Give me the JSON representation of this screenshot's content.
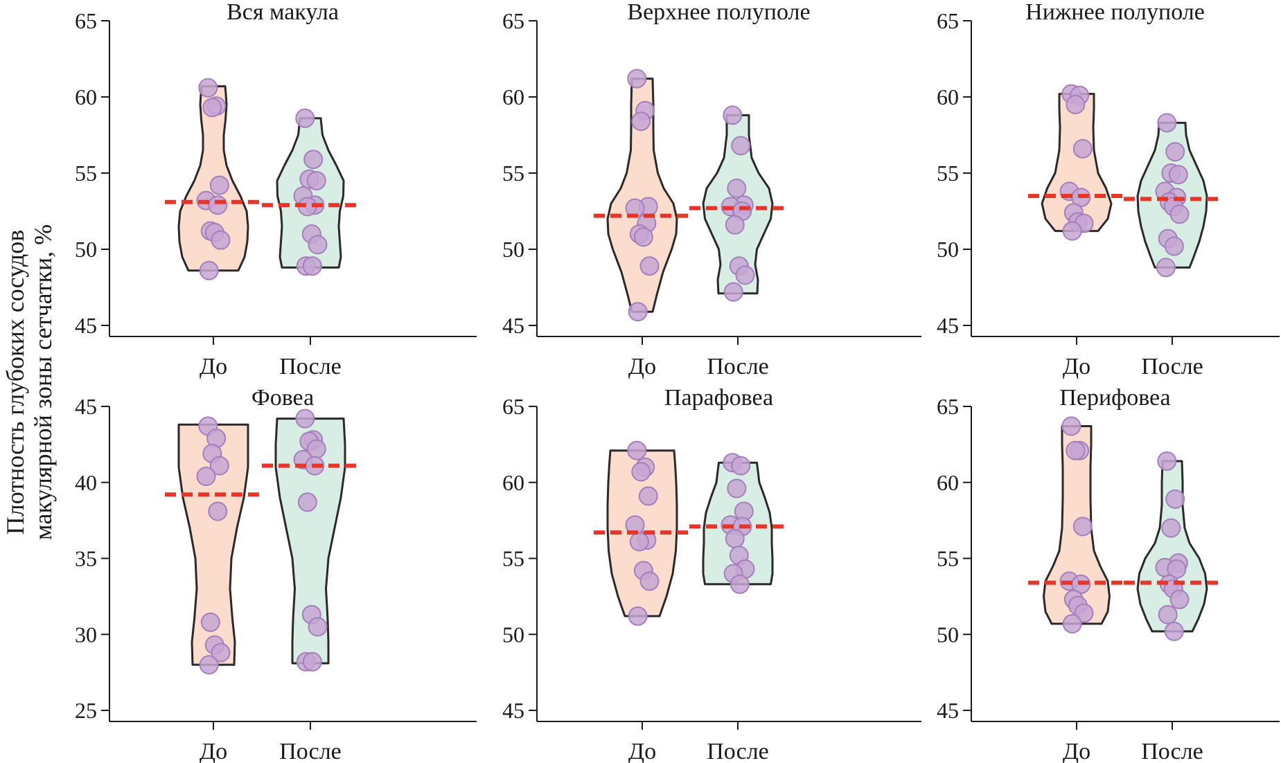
{
  "colors": {
    "before_fill": "#fbdccd",
    "after_fill": "#d8eee5",
    "violin_stroke": "#2a2a2a",
    "point_fill": "#c7a6d4",
    "point_stroke": "#a47fbc",
    "mean_line": "#e8352a",
    "axis": "#1a1a1a"
  },
  "ylabel": {
    "line1": "Плотность глубоких сосудов",
    "line2": "макулярной зоны сетчатки, %"
  },
  "chart_data": [
    {
      "type": "violin",
      "title": "Вся макула",
      "categories": [
        "До",
        "После"
      ],
      "ylim": [
        45,
        65
      ],
      "yticks": [
        "45",
        "50",
        "55",
        "60",
        "65"
      ],
      "groups": [
        {
          "name": "До",
          "range": [
            48.6,
            60.7
          ],
          "mean": 53.1,
          "points": [
            60.6,
            59.4,
            59.3,
            54.2,
            53.2,
            52.9,
            51.2,
            51.1,
            50.6,
            48.6
          ],
          "profile": [
            [
              48.6,
              0.72
            ],
            [
              49.5,
              0.9
            ],
            [
              50.5,
              0.98
            ],
            [
              51.5,
              1.0
            ],
            [
              52.5,
              0.96
            ],
            [
              53.5,
              0.78
            ],
            [
              54.5,
              0.55
            ],
            [
              55.5,
              0.38
            ],
            [
              56.5,
              0.3
            ],
            [
              57.5,
              0.3
            ],
            [
              58.5,
              0.35
            ],
            [
              59.5,
              0.38
            ],
            [
              60.2,
              0.36
            ],
            [
              60.7,
              0.34
            ]
          ]
        },
        {
          "name": "После",
          "range": [
            48.8,
            58.6
          ],
          "mean": 52.9,
          "points": [
            58.6,
            55.9,
            54.6,
            54.5,
            53.5,
            52.9,
            52.8,
            51.0,
            50.3,
            48.9,
            48.9
          ],
          "profile": [
            [
              48.8,
              0.82
            ],
            [
              49.5,
              0.88
            ],
            [
              50.5,
              0.85
            ],
            [
              51.5,
              0.82
            ],
            [
              52.5,
              0.85
            ],
            [
              53.5,
              0.95
            ],
            [
              54.5,
              0.96
            ],
            [
              55.5,
              0.75
            ],
            [
              56.5,
              0.52
            ],
            [
              57.5,
              0.35
            ],
            [
              58.6,
              0.3
            ]
          ]
        }
      ]
    },
    {
      "type": "violin",
      "title": "Верхнее полуполе",
      "categories": [
        "До",
        "После"
      ],
      "ylim": [
        45,
        65
      ],
      "yticks": [
        "45",
        "50",
        "55",
        "60",
        "65"
      ],
      "groups": [
        {
          "name": "До",
          "range": [
            45.9,
            61.2
          ],
          "mean": 52.2,
          "points": [
            61.2,
            59.1,
            58.4,
            52.8,
            52.7,
            51.7,
            51.0,
            50.8,
            48.9,
            45.9
          ],
          "profile": [
            [
              45.9,
              0.3
            ],
            [
              47.0,
              0.42
            ],
            [
              48.5,
              0.6
            ],
            [
              50.0,
              0.85
            ],
            [
              51.0,
              0.98
            ],
            [
              52.0,
              1.0
            ],
            [
              53.0,
              0.9
            ],
            [
              54.0,
              0.62
            ],
            [
              55.0,
              0.45
            ],
            [
              56.5,
              0.33
            ],
            [
              58.0,
              0.32
            ],
            [
              59.5,
              0.32
            ],
            [
              61.2,
              0.3
            ]
          ]
        },
        {
          "name": "После",
          "range": [
            47.1,
            58.8
          ],
          "mean": 52.7,
          "points": [
            58.8,
            56.8,
            54.0,
            52.9,
            52.8,
            52.5,
            51.6,
            48.9,
            48.3,
            47.2
          ],
          "profile": [
            [
              47.1,
              0.56
            ],
            [
              48.0,
              0.58
            ],
            [
              49.0,
              0.5
            ],
            [
              50.0,
              0.55
            ],
            [
              51.0,
              0.75
            ],
            [
              52.0,
              0.95
            ],
            [
              53.0,
              1.0
            ],
            [
              54.0,
              0.9
            ],
            [
              55.0,
              0.6
            ],
            [
              56.0,
              0.4
            ],
            [
              57.5,
              0.32
            ],
            [
              58.8,
              0.32
            ]
          ]
        }
      ]
    },
    {
      "type": "violin",
      "title": "Нижнее полуполе",
      "categories": [
        "До",
        "После"
      ],
      "ylim": [
        45,
        65
      ],
      "yticks": [
        "45",
        "50",
        "55",
        "60",
        "65"
      ],
      "groups": [
        {
          "name": "До",
          "range": [
            51.2,
            60.2
          ],
          "mean": 53.5,
          "points": [
            60.2,
            60.1,
            59.5,
            56.6,
            53.8,
            53.4,
            52.4,
            51.8,
            51.7,
            51.2
          ],
          "profile": [
            [
              51.2,
              0.62
            ],
            [
              52.0,
              0.9
            ],
            [
              53.0,
              1.0
            ],
            [
              54.0,
              0.85
            ],
            [
              55.0,
              0.62
            ],
            [
              56.5,
              0.5
            ],
            [
              58.0,
              0.48
            ],
            [
              59.2,
              0.5
            ],
            [
              60.2,
              0.5
            ]
          ]
        },
        {
          "name": "После",
          "range": [
            48.8,
            58.3
          ],
          "mean": 53.3,
          "points": [
            58.3,
            56.4,
            55.0,
            54.9,
            53.8,
            53.4,
            53.1,
            52.8,
            52.3,
            50.7,
            50.2,
            48.8
          ],
          "profile": [
            [
              48.8,
              0.5
            ],
            [
              49.5,
              0.62
            ],
            [
              50.5,
              0.78
            ],
            [
              51.5,
              0.9
            ],
            [
              52.5,
              0.98
            ],
            [
              53.5,
              1.0
            ],
            [
              54.5,
              0.9
            ],
            [
              55.5,
              0.7
            ],
            [
              56.5,
              0.5
            ],
            [
              57.5,
              0.4
            ],
            [
              58.3,
              0.38
            ]
          ]
        }
      ]
    },
    {
      "type": "violin",
      "title": "Фовеа",
      "categories": [
        "До",
        "После"
      ],
      "ylim": [
        25,
        45
      ],
      "yticks": [
        "25",
        "30",
        "35",
        "40",
        "45"
      ],
      "groups": [
        {
          "name": "До",
          "range": [
            28.0,
            43.8
          ],
          "mean": 39.2,
          "points": [
            43.7,
            42.9,
            41.9,
            41.1,
            40.4,
            38.1,
            30.8,
            29.3,
            28.8,
            28.0
          ],
          "profile": [
            [
              28.0,
              0.6
            ],
            [
              29.5,
              0.62
            ],
            [
              31.0,
              0.55
            ],
            [
              33.0,
              0.48
            ],
            [
              35.0,
              0.52
            ],
            [
              37.0,
              0.68
            ],
            [
              39.0,
              0.88
            ],
            [
              41.0,
              1.0
            ],
            [
              42.5,
              1.0
            ],
            [
              43.8,
              1.0
            ]
          ]
        },
        {
          "name": "После",
          "range": [
            28.1,
            44.2
          ],
          "mean": 41.1,
          "points": [
            44.2,
            42.8,
            42.7,
            42.2,
            41.5,
            41.1,
            38.7,
            31.3,
            30.5,
            28.2,
            28.2
          ],
          "profile": [
            [
              28.1,
              0.52
            ],
            [
              29.5,
              0.52
            ],
            [
              31.0,
              0.5
            ],
            [
              33.0,
              0.45
            ],
            [
              35.0,
              0.52
            ],
            [
              37.0,
              0.7
            ],
            [
              39.0,
              0.88
            ],
            [
              41.0,
              1.0
            ],
            [
              42.5,
              1.0
            ],
            [
              44.2,
              0.96
            ]
          ]
        }
      ]
    },
    {
      "type": "violin",
      "title": "Парафовеа",
      "categories": [
        "До",
        "После"
      ],
      "ylim": [
        45,
        65
      ],
      "yticks": [
        "45",
        "50",
        "55",
        "60",
        "65"
      ],
      "groups": [
        {
          "name": "До",
          "range": [
            51.2,
            62.1
          ],
          "mean": 56.7,
          "points": [
            62.1,
            61.0,
            60.7,
            59.1,
            57.2,
            56.2,
            56.1,
            54.2,
            53.5,
            51.2
          ],
          "profile": [
            [
              51.2,
              0.5
            ],
            [
              52.5,
              0.7
            ],
            [
              54.0,
              0.88
            ],
            [
              55.5,
              0.97
            ],
            [
              57.0,
              1.0
            ],
            [
              58.5,
              1.0
            ],
            [
              60.0,
              0.98
            ],
            [
              61.2,
              0.95
            ],
            [
              62.1,
              0.92
            ]
          ]
        },
        {
          "name": "После",
          "range": [
            53.3,
            61.3
          ],
          "mean": 57.1,
          "points": [
            61.3,
            61.1,
            59.6,
            58.1,
            57.2,
            57.1,
            56.3,
            55.2,
            54.3,
            54.0,
            53.3
          ],
          "profile": [
            [
              53.3,
              0.95
            ],
            [
              54.0,
              1.0
            ],
            [
              55.0,
              1.0
            ],
            [
              56.0,
              0.98
            ],
            [
              57.0,
              0.98
            ],
            [
              58.0,
              0.92
            ],
            [
              59.0,
              0.78
            ],
            [
              60.0,
              0.62
            ],
            [
              61.3,
              0.55
            ]
          ]
        }
      ]
    },
    {
      "type": "violin",
      "title": "Перифовеа",
      "categories": [
        "До",
        "После"
      ],
      "ylim": [
        45,
        65
      ],
      "yticks": [
        "45",
        "50",
        "55",
        "60",
        "65"
      ],
      "groups": [
        {
          "name": "До",
          "range": [
            50.7,
            63.7
          ],
          "mean": 53.4,
          "points": [
            63.7,
            62.1,
            62.1,
            57.1,
            53.5,
            53.3,
            52.3,
            51.9,
            51.4,
            50.7
          ],
          "profile": [
            [
              50.7,
              0.72
            ],
            [
              51.5,
              0.9
            ],
            [
              52.5,
              0.95
            ],
            [
              53.5,
              0.9
            ],
            [
              54.5,
              0.68
            ],
            [
              55.5,
              0.5
            ],
            [
              57.0,
              0.42
            ],
            [
              59.0,
              0.4
            ],
            [
              61.0,
              0.4
            ],
            [
              62.5,
              0.42
            ],
            [
              63.7,
              0.42
            ]
          ]
        },
        {
          "name": "После",
          "range": [
            50.2,
            61.4
          ],
          "mean": 53.4,
          "points": [
            61.4,
            58.9,
            57.0,
            54.7,
            54.4,
            54.3,
            53.3,
            53.0,
            52.3,
            51.3,
            50.2
          ],
          "profile": [
            [
              50.2,
              0.58
            ],
            [
              51.0,
              0.75
            ],
            [
              52.0,
              0.92
            ],
            [
              53.0,
              1.0
            ],
            [
              54.0,
              0.95
            ],
            [
              55.0,
              0.78
            ],
            [
              56.0,
              0.5
            ],
            [
              57.0,
              0.36
            ],
            [
              58.5,
              0.3
            ],
            [
              60.0,
              0.3
            ],
            [
              61.4,
              0.28
            ]
          ]
        }
      ]
    }
  ]
}
